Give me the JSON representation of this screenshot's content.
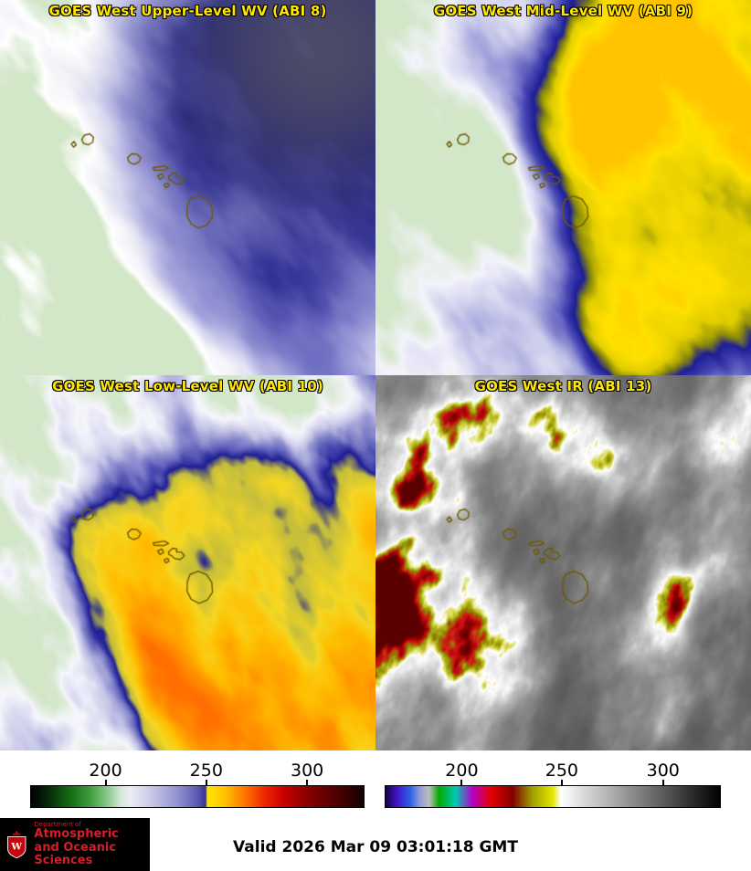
{
  "app": {
    "background": "#ffffff",
    "title_color": "#ffe600"
  },
  "panels": [
    {
      "key": "abi8",
      "title": "GOES West Upper-Level WV (ABI 8)"
    },
    {
      "key": "abi9",
      "title": "GOES West Mid-Level WV (ABI 9)"
    },
    {
      "key": "abi10",
      "title": "GOES West Low-Level WV (ABI 10)"
    },
    {
      "key": "abi13",
      "title": "GOES West IR (ABI 13)"
    }
  ],
  "colorbars": [
    {
      "key": "wv",
      "ticks": [
        {
          "label": "200",
          "pos": 0.224
        },
        {
          "label": "250",
          "pos": 0.527
        },
        {
          "label": "300",
          "pos": 0.83
        }
      ],
      "gradient": [
        [
          0,
          "#000000"
        ],
        [
          0.05,
          "#06280a"
        ],
        [
          0.12,
          "#156e15"
        ],
        [
          0.18,
          "#3fa03f"
        ],
        [
          0.23,
          "#8cc88c"
        ],
        [
          0.27,
          "#d8e8d8"
        ],
        [
          0.3,
          "#ececf4"
        ],
        [
          0.36,
          "#c8c8e8"
        ],
        [
          0.44,
          "#9292d2"
        ],
        [
          0.5,
          "#5a5ab4"
        ],
        [
          0.525,
          "#32329b"
        ],
        [
          0.53,
          "#ffe600"
        ],
        [
          0.58,
          "#ffc300"
        ],
        [
          0.64,
          "#ff7800"
        ],
        [
          0.7,
          "#f02800"
        ],
        [
          0.76,
          "#c80000"
        ],
        [
          0.84,
          "#820000"
        ],
        [
          0.93,
          "#460000"
        ],
        [
          1,
          "#140000"
        ]
      ]
    },
    {
      "key": "ir",
      "ticks": [
        {
          "label": "200",
          "pos": 0.228
        },
        {
          "label": "250",
          "pos": 0.527
        },
        {
          "label": "300",
          "pos": 0.83
        }
      ],
      "gradient": [
        [
          0,
          "#140046"
        ],
        [
          0.035,
          "#4614c8"
        ],
        [
          0.075,
          "#2864e6"
        ],
        [
          0.1,
          "#8c96dc"
        ],
        [
          0.13,
          "#bebebe"
        ],
        [
          0.16,
          "#00aa00"
        ],
        [
          0.21,
          "#00c8b4"
        ],
        [
          0.26,
          "#b400c8"
        ],
        [
          0.315,
          "#e60000"
        ],
        [
          0.38,
          "#820000"
        ],
        [
          0.44,
          "#a0a000"
        ],
        [
          0.5,
          "#e6e600"
        ],
        [
          0.525,
          "#ffffff"
        ],
        [
          0.7,
          "#a0a0a0"
        ],
        [
          0.85,
          "#505050"
        ],
        [
          1,
          "#000000"
        ]
      ]
    }
  ],
  "footer": {
    "valid_text": "Valid 2026 Mar 09 03:01:18 GMT",
    "logo": {
      "dept_small": "Department of",
      "line1": "Atmospheric",
      "line2": "and Oceanic Sciences",
      "bg": "#000000",
      "text_color": "#d41e28",
      "crest_color": "#c5050c"
    }
  },
  "render": {
    "coast_color": "#6e5a00",
    "panels": {
      "abi8": {
        "seed": 11,
        "oct": 5,
        "fx": 3.6,
        "fy": 1.7,
        "angle": -0.7,
        "bias": 0.05,
        "leftW": 0.42,
        "topW": 0,
        "amp": 0.55,
        "blob": [
          0.8,
          0.3,
          0.55,
          0.62
        ],
        "blobW": 0.52,
        "tint": {
          "c": [
            0.85,
            0.13
          ],
          "r": 0.28,
          "color": "#b0ac3c",
          "a": 0.35
        },
        "stops": [
          [
            0,
            "#16167e"
          ],
          [
            0.16,
            "#31319b"
          ],
          [
            0.34,
            "#6a6ac0"
          ],
          [
            0.52,
            "#9a9ad8"
          ],
          [
            0.68,
            "#c4c4ea"
          ],
          [
            0.84,
            "#ececf6"
          ],
          [
            0.93,
            "#ffffff"
          ],
          [
            1,
            "#d2e6c8"
          ]
        ]
      },
      "abi9": {
        "seed": 23,
        "oct": 5,
        "fx": 3.3,
        "fy": 1.8,
        "angle": -0.6,
        "bias": -0.02,
        "leftW": 0.4,
        "topW": 0,
        "amp": 0.6,
        "blob": [
          0.88,
          0.38,
          0.5,
          0.72
        ],
        "blobW": 0.65,
        "stops": [
          [
            0,
            "#ffc300"
          ],
          [
            0.13,
            "#ffe100"
          ],
          [
            0.24,
            "#e1cd00"
          ],
          [
            0.32,
            "#8c8c0a"
          ],
          [
            0.4,
            "#1e1e96"
          ],
          [
            0.52,
            "#4646b4"
          ],
          [
            0.65,
            "#8c8cd2"
          ],
          [
            0.78,
            "#c6c6ea"
          ],
          [
            0.9,
            "#f4f4fb"
          ],
          [
            1,
            "#d2e6c8"
          ]
        ]
      },
      "abi10": {
        "seed": 37,
        "oct": 5,
        "fx": 4.0,
        "fy": 2.1,
        "angle": -0.5,
        "bias": 0.03,
        "leftW": 0.36,
        "topW": 0.1,
        "amp": 0.65,
        "blob": [
          0.72,
          0.62,
          0.58,
          0.55
        ],
        "blobW": 0.52,
        "stops": [
          [
            0,
            "#ff6e00"
          ],
          [
            0.14,
            "#ff9100"
          ],
          [
            0.28,
            "#ffbe00"
          ],
          [
            0.4,
            "#f5d723"
          ],
          [
            0.5,
            "#c3bd3c"
          ],
          [
            0.56,
            "#1e1e96"
          ],
          [
            0.64,
            "#6a6ac0"
          ],
          [
            0.77,
            "#c2c2e6"
          ],
          [
            0.9,
            "#f6f6fc"
          ],
          [
            1,
            "#d2e6c8"
          ]
        ]
      },
      "abi13": {
        "seed": 51,
        "oct": 6,
        "fx": 5.2,
        "fy": 3.2,
        "angle": 0.35,
        "bias": 0.4,
        "leftW": 0.14,
        "topW": 0.05,
        "amp": 0.75,
        "boosts": [
          [
            0.09,
            0.17,
            0.1,
            0.5
          ],
          [
            0.1,
            0.36,
            0.09,
            0.45
          ],
          [
            0.06,
            0.52,
            0.07,
            0.4
          ],
          [
            0.28,
            0.07,
            0.09,
            0.42
          ],
          [
            0.45,
            0.1,
            0.05,
            0.3
          ],
          [
            0.2,
            0.55,
            0.06,
            0.3
          ],
          [
            0.13,
            0.67,
            0.05,
            0.25
          ]
        ],
        "stops": [
          [
            0,
            "#505050"
          ],
          [
            0.3,
            "#6b6b6b"
          ],
          [
            0.5,
            "#8c8c8c"
          ],
          [
            0.65,
            "#b4b4b4"
          ],
          [
            0.76,
            "#e6e6e6"
          ],
          [
            0.81,
            "#ffffff"
          ],
          [
            0.845,
            "#d2d23c"
          ],
          [
            0.88,
            "#8c8c00"
          ],
          [
            0.915,
            "#d21414"
          ],
          [
            0.955,
            "#8c0000"
          ],
          [
            1,
            "#5a0000"
          ]
        ]
      }
    }
  }
}
